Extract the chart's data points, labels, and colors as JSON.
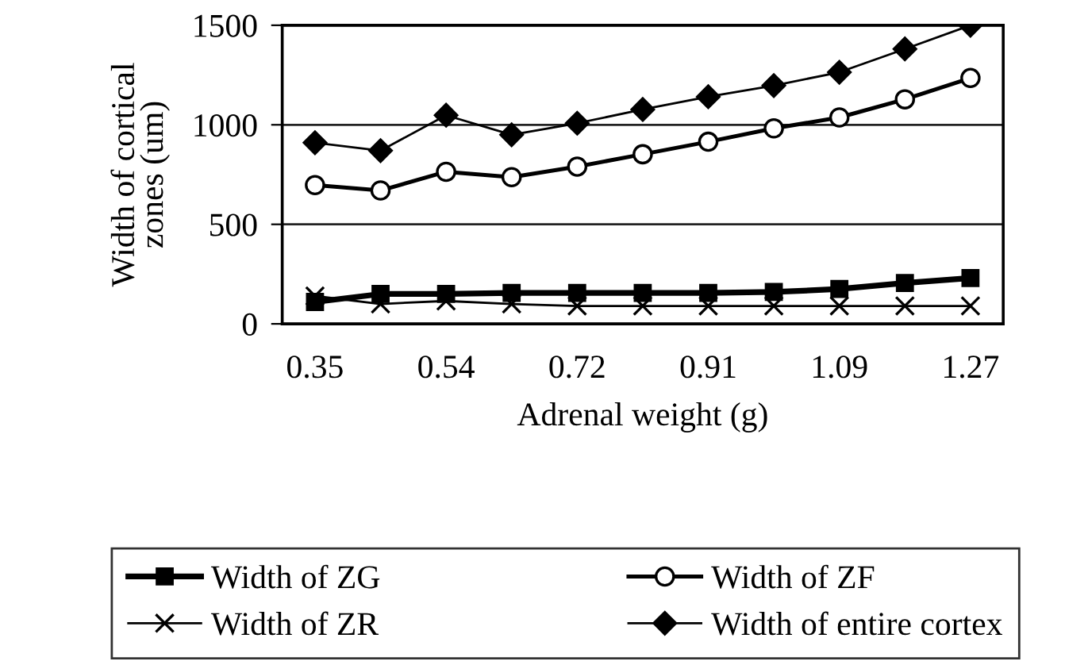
{
  "chart_data": {
    "type": "line",
    "xlabel": "Adrenal weight (g)",
    "ylabel": "Width of cortical\nzones (um)",
    "categories": [
      "0.35",
      null,
      "0.54",
      null,
      "0.72",
      null,
      "0.91",
      null,
      "1.09",
      null,
      "1.27"
    ],
    "series": [
      {
        "name": "Width of ZG",
        "color": "#000000",
        "marker": "square",
        "values": [
          110,
          150,
          150,
          155,
          155,
          155,
          155,
          160,
          175,
          205,
          230
        ]
      },
      {
        "name": "Width of ZF",
        "color": "#000000",
        "marker": "circle",
        "values": [
          697,
          670,
          764,
          737,
          790,
          852,
          915,
          982,
          1037,
          1128,
          1235
        ]
      },
      {
        "name": "Width of ZR",
        "color": "#000000",
        "marker": "cross",
        "values": [
          140,
          100,
          115,
          100,
          90,
          90,
          90,
          90,
          90,
          90,
          90
        ]
      },
      {
        "name": "Width of entire cortex",
        "color": "#000000",
        "marker": "diamond",
        "values": [
          910,
          870,
          1048,
          950,
          1008,
          1077,
          1141,
          1197,
          1264,
          1381,
          1500
        ]
      }
    ],
    "ylim": [
      0,
      1500
    ],
    "yticks": [
      0,
      500,
      1000,
      1500
    ],
    "grid": "y",
    "legend": "bottom",
    "line_style": "solid"
  }
}
